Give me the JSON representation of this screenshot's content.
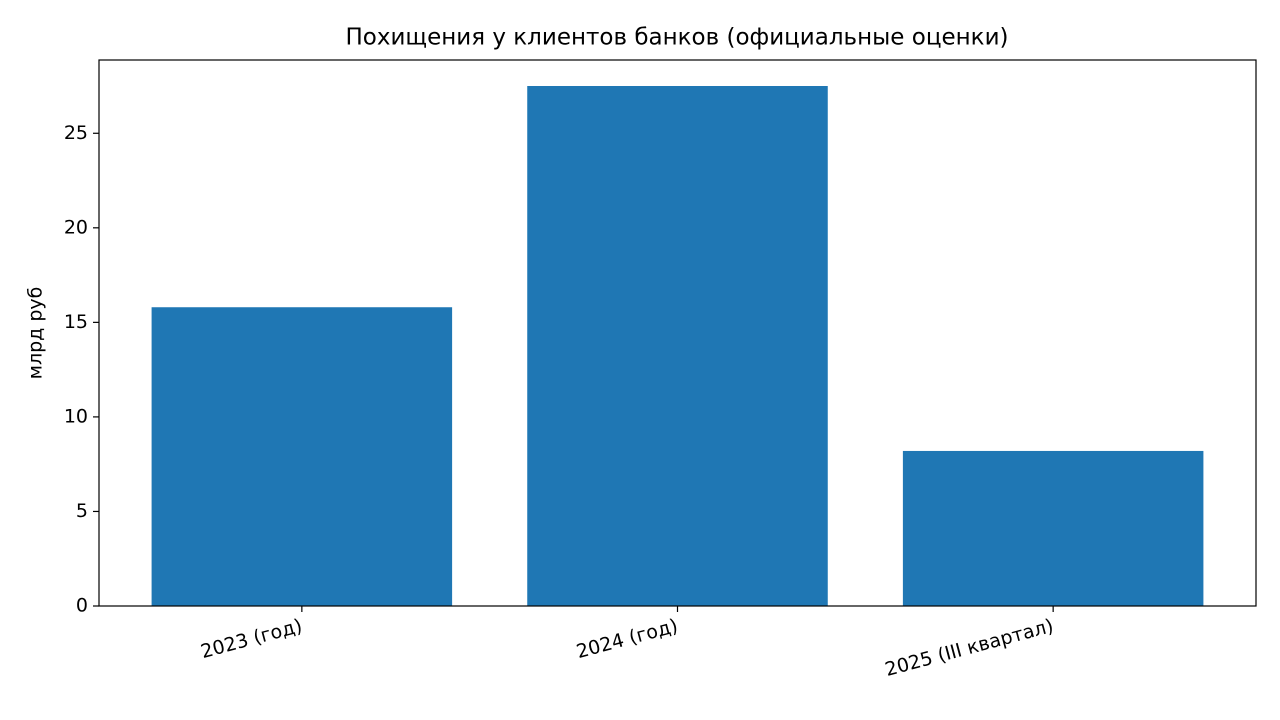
{
  "chart_data": {
    "type": "bar",
    "title": "Похищения у клиентов банков (официальные оценки)",
    "y_label": "млрд руб",
    "categories": [
      "2023 (год)",
      "2024 (год)",
      "2025 (III квартал)"
    ],
    "values": [
      15.8,
      27.5,
      8.2
    ],
    "color": "#1f77b4",
    "ylim": [
      0,
      28.875
    ],
    "yticks": [
      0,
      5,
      10,
      15,
      20,
      25
    ],
    "grid": false
  }
}
